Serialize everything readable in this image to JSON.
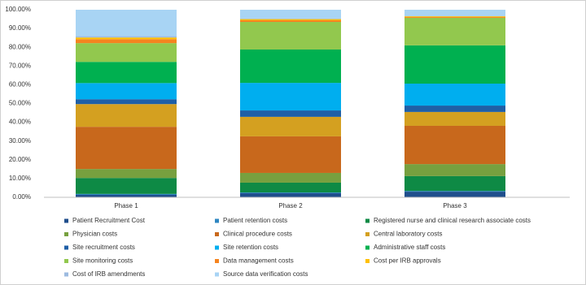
{
  "chart_data": {
    "type": "stacked_bar",
    "categories": [
      "Phase 1",
      "Phase 2",
      "Phase 3"
    ],
    "ylim": [
      0,
      100
    ],
    "yticks": [
      {
        "value": 0,
        "label": "0.00%"
      },
      {
        "value": 10,
        "label": "10.00%"
      },
      {
        "value": 20,
        "label": "20.00%"
      },
      {
        "value": 30,
        "label": "30.00%"
      },
      {
        "value": 40,
        "label": "40.00%"
      },
      {
        "value": 50,
        "label": "50.00%"
      },
      {
        "value": 60,
        "label": "60.00%"
      },
      {
        "value": 70,
        "label": "70.00%"
      },
      {
        "value": 80,
        "label": "80.00%"
      },
      {
        "value": 90,
        "label": "90.00%"
      },
      {
        "value": 100,
        "label": "100.00%"
      }
    ],
    "series": [
      {
        "name": "Patient Recruitment Cost",
        "color": "#1f4e8c",
        "values": [
          1.3,
          2.2,
          3.0
        ]
      },
      {
        "name": "Patient retention costs",
        "color": "#2e86c1",
        "values": [
          0.5,
          0.4,
          0.4
        ]
      },
      {
        "name": "Registered nurse and clinical research associate costs",
        "color": "#0e8a45",
        "values": [
          8.5,
          5.2,
          7.9
        ]
      },
      {
        "name": "Physician costs",
        "color": "#77a03f",
        "values": [
          4.8,
          5.2,
          6.4
        ]
      },
      {
        "name": "Clinical procedure costs",
        "color": "#c8681c",
        "values": [
          22.5,
          19.5,
          20.4
        ]
      },
      {
        "name": "Central laboratory costs",
        "color": "#d4a020",
        "values": [
          12.1,
          10.4,
          7.4
        ]
      },
      {
        "name": "Site recruitment costs",
        "color": "#1f5fa6",
        "values": [
          2.6,
          3.4,
          3.4
        ]
      },
      {
        "name": "Site retention costs",
        "color": "#00aeef",
        "values": [
          8.6,
          14.7,
          11.7
        ]
      },
      {
        "name": "Administrative staff costs",
        "color": "#00b050",
        "values": [
          11.3,
          17.8,
          20.4
        ]
      },
      {
        "name": "Site monitoring costs",
        "color": "#92c84e",
        "values": [
          10.0,
          14.7,
          14.7
        ]
      },
      {
        "name": "Data management costs",
        "color": "#f5841f",
        "values": [
          2.1,
          0.9,
          0.4
        ]
      },
      {
        "name": "Cost per IRB approvals",
        "color": "#ffc000",
        "values": [
          0.9,
          0.6,
          0.4
        ]
      },
      {
        "name": "Cost of IRB amendments",
        "color": "#9dbbe0",
        "values": [
          0.7,
          0.3,
          0.2
        ]
      },
      {
        "name": "Source data verification costs",
        "color": "#a8d4f4",
        "values": [
          14.1,
          4.7,
          3.3
        ]
      }
    ]
  }
}
